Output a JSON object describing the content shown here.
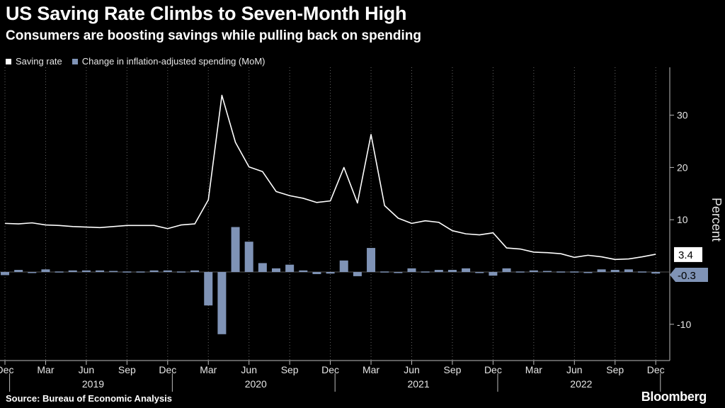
{
  "header": {
    "title": "US Saving Rate Climbs to Seven-Month High",
    "subtitle": "Consumers are boosting savings while pulling back on spending"
  },
  "legend": {
    "saving_label": "Saving rate",
    "spending_label": "Change in inflation-adjusted spending (MoM)"
  },
  "footer": {
    "source": "Source: Bureau of Economic Analysis",
    "brand": "Bloomberg"
  },
  "chart_data": {
    "type": "line",
    "ylabel": "Percent",
    "ylim": [
      -15,
      38
    ],
    "yticks": [
      -10,
      10,
      20,
      30
    ],
    "grid": "vertical dotted lines at Dec, Mar, Jun, Sep months; zero line",
    "x_start": "2018-12",
    "x_end": "2022-12",
    "month_ticks": [
      "Dec",
      "Mar",
      "Jun",
      "Sep",
      "Dec",
      "Mar",
      "Jun",
      "Sep",
      "Dec",
      "Mar",
      "Jun",
      "Sep",
      "Dec",
      "Mar",
      "Jun",
      "Sep",
      "Dec"
    ],
    "year_labels": [
      "2019",
      "2020",
      "2021",
      "2022"
    ],
    "end_labels": {
      "saving": "3.4",
      "spending": "-0.3"
    },
    "colors": {
      "saving": "#ffffff",
      "spending": "#7f93b6",
      "grid": "#666666",
      "background": "#000000"
    },
    "series": [
      {
        "name": "Saving rate",
        "type": "line",
        "values": [
          9.3,
          9.2,
          9.4,
          9.0,
          8.9,
          8.7,
          8.6,
          8.5,
          8.7,
          8.9,
          8.9,
          8.9,
          8.3,
          9.0,
          9.2,
          13.8,
          33.8,
          24.8,
          20.1,
          19.2,
          15.4,
          14.6,
          14.1,
          13.3,
          13.6,
          20.0,
          13.2,
          26.3,
          12.7,
          10.3,
          9.3,
          9.8,
          9.5,
          7.9,
          7.3,
          7.1,
          7.5,
          4.6,
          4.4,
          3.8,
          3.7,
          3.5,
          2.8,
          3.2,
          2.9,
          2.4,
          2.5,
          2.9,
          3.4
        ]
      },
      {
        "name": "Change in inflation-adjusted spending (MoM)",
        "type": "bar",
        "values": [
          -0.6,
          0.4,
          0.0,
          0.5,
          0.1,
          0.3,
          0.3,
          0.3,
          0.2,
          0.1,
          0.1,
          0.3,
          0.3,
          0.1,
          0.3,
          -6.4,
          -11.9,
          8.6,
          5.8,
          1.7,
          0.7,
          1.4,
          0.3,
          -0.4,
          -0.3,
          2.2,
          -0.8,
          4.6,
          0.1,
          0.0,
          0.7,
          0.1,
          0.4,
          0.4,
          0.7,
          0.0,
          -0.7,
          0.7,
          0.1,
          0.3,
          0.2,
          0.1,
          0.1,
          0.0,
          0.5,
          0.4,
          0.5,
          0.1,
          -0.3
        ]
      }
    ]
  }
}
